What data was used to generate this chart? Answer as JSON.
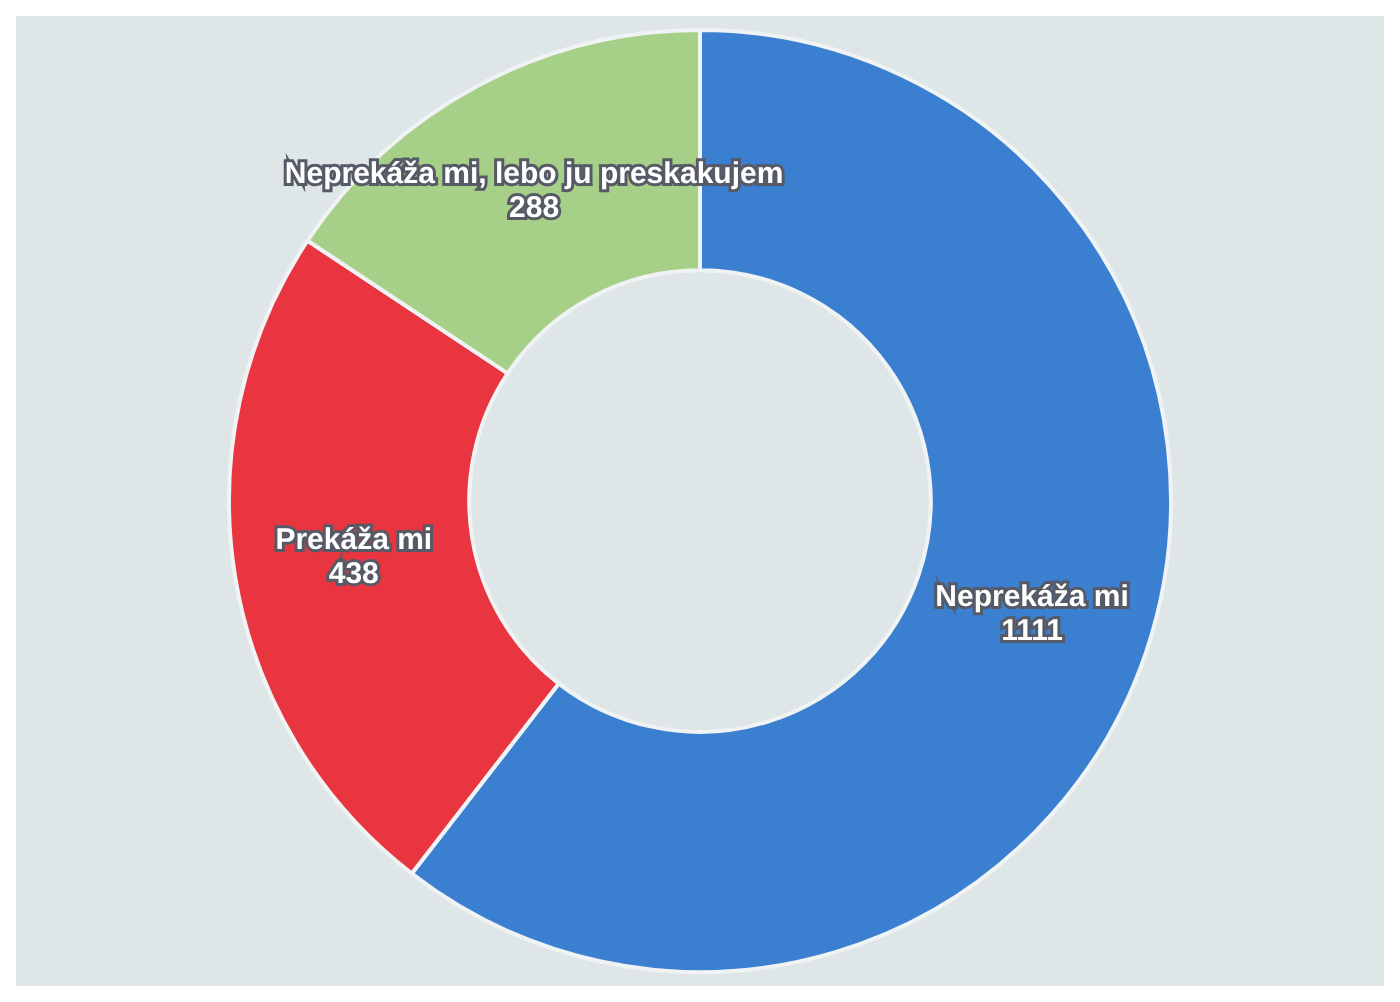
{
  "chart_data": {
    "type": "donut",
    "categories": [
      "Neprekáža mi",
      "Prekáža mi",
      "Neprekáža mi, lebo ju preskakujem"
    ],
    "values": [
      1111,
      438,
      288
    ],
    "colors": [
      "#3b7fd1",
      "#e8353f",
      "#a6cf88"
    ],
    "data_labels": true,
    "legend": false
  }
}
